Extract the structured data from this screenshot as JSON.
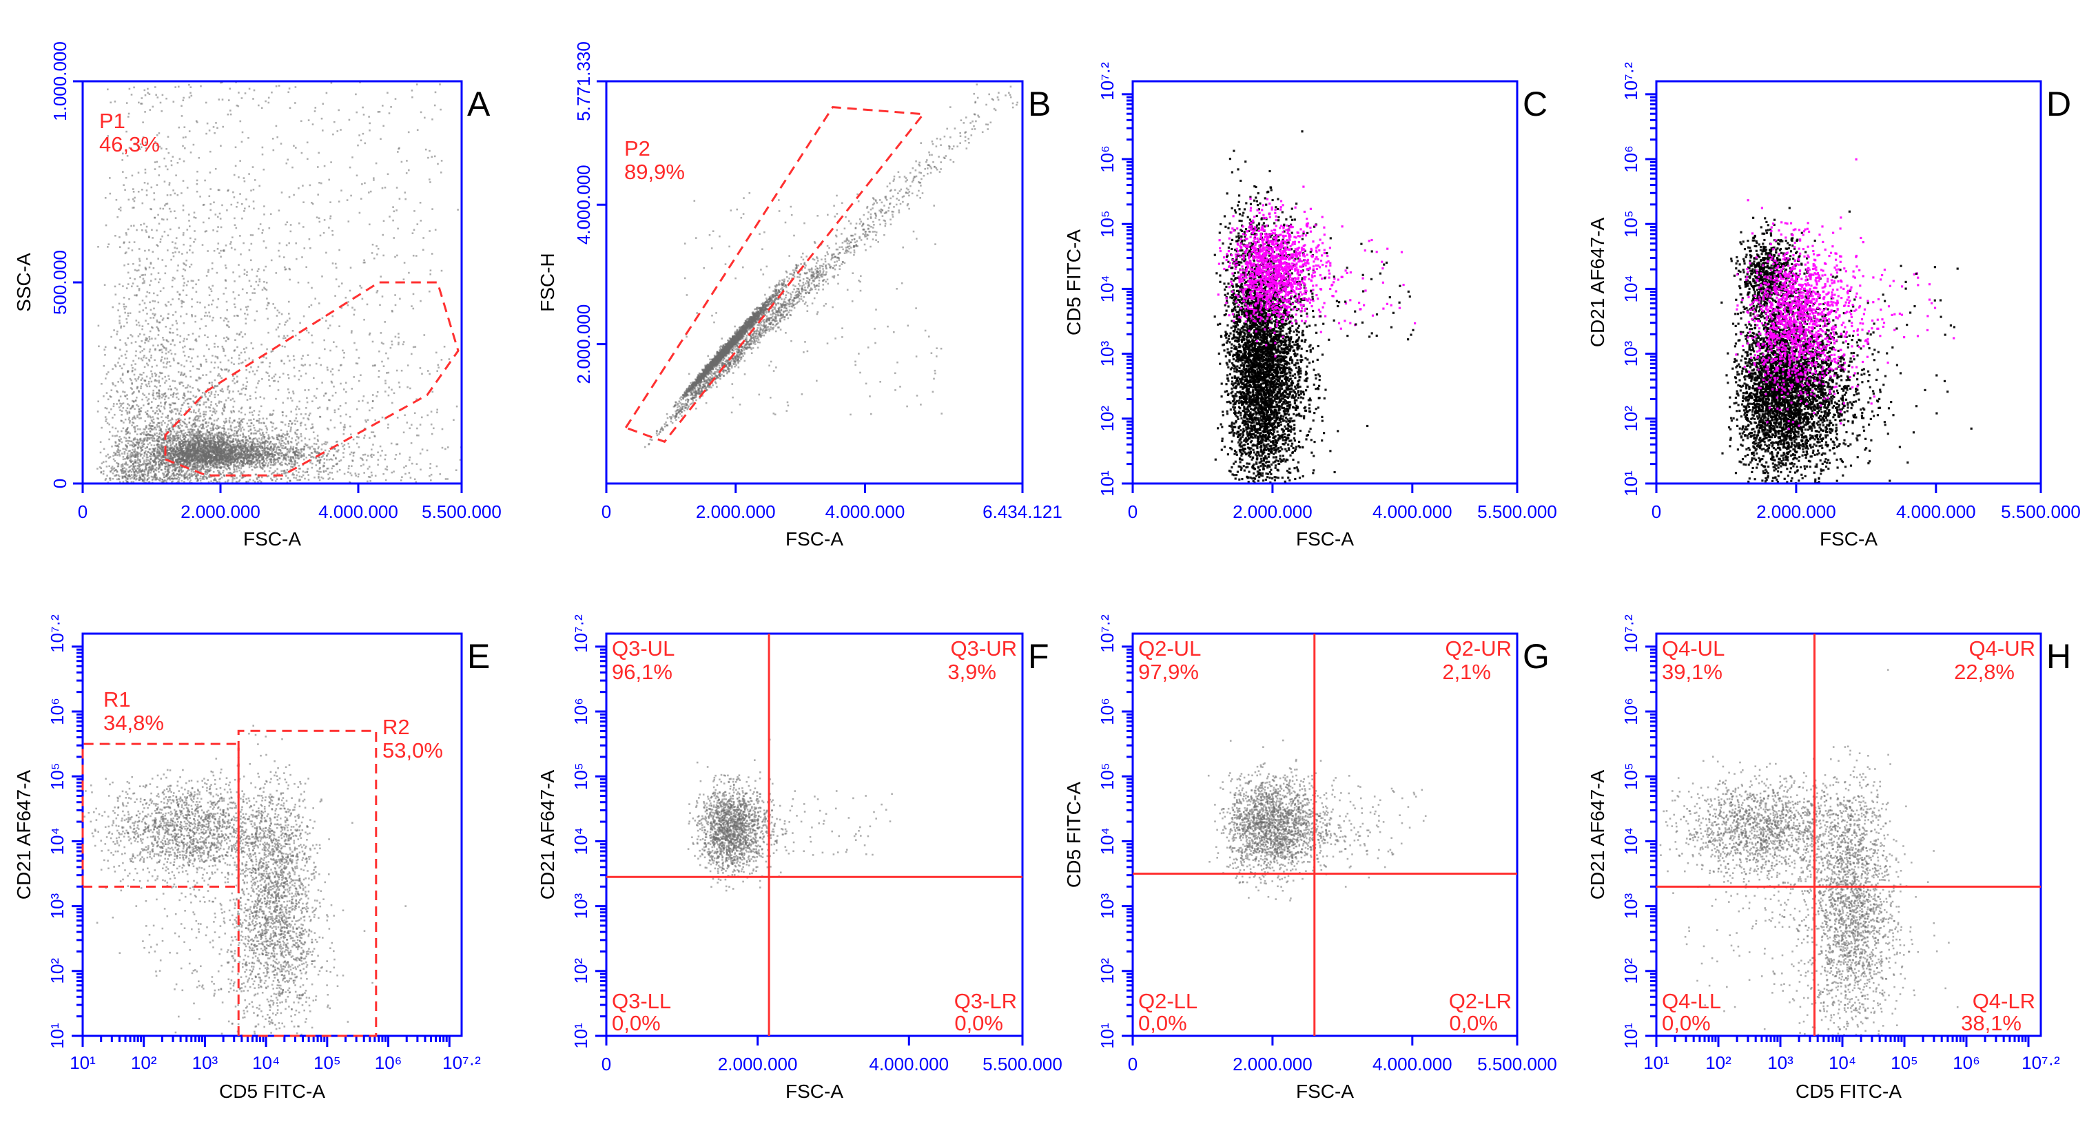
{
  "figure": {
    "colors": {
      "axis": "#0000ff",
      "gate": "#ff3030",
      "dots_gray": "#6b6b6b",
      "dots_black": "#000000",
      "dots_magenta": "#ff00ff"
    }
  },
  "chart_data": [
    {
      "id": "A",
      "letter": "A",
      "type": "scatter",
      "xlabel": "FSC-A",
      "ylabel": "SSC-A",
      "xscale": "linear",
      "yscale": "linear",
      "xlim": [
        0,
        5500000
      ],
      "ylim": [
        0,
        1000000
      ],
      "xticks": [
        0,
        2000000,
        4000000,
        5500000
      ],
      "xtick_labels": [
        "0",
        "2.000.000",
        "4.000.000",
        "5.500.000"
      ],
      "yticks": [
        0,
        500000,
        1000000
      ],
      "ytick_labels": [
        "0",
        "500.000",
        "1.000.000"
      ],
      "gates": [
        {
          "name": "P1",
          "percent": "46,3%",
          "polygon": [
            [
              1200000,
              60000
            ],
            [
              1800000,
              20000
            ],
            [
              2900000,
              20000
            ],
            [
              5000000,
              220000
            ],
            [
              5450000,
              330000
            ],
            [
              5150000,
              500000
            ],
            [
              4300000,
              500000
            ],
            [
              1800000,
              230000
            ],
            [
              1200000,
              120000
            ]
          ]
        }
      ],
      "quadrants": [],
      "populations": [
        {
          "color": "gray",
          "n": 2600,
          "spread": "log",
          "center": [
            1900000,
            80000
          ],
          "sd": [
            0.12,
            0.12
          ]
        },
        {
          "color": "gray",
          "n": 3500,
          "spread": "log",
          "center": [
            1500000,
            130000
          ],
          "sd": [
            0.28,
            0.55
          ]
        },
        {
          "color": "gray",
          "n": 700,
          "spread": "uniform",
          "range": [
            [
              500000,
              5200000
            ],
            [
              5000,
              1000000
            ]
          ]
        }
      ]
    },
    {
      "id": "B",
      "letter": "B",
      "type": "scatter",
      "xlabel": "FSC-A",
      "ylabel": "FSC-H",
      "xscale": "linear",
      "yscale": "linear",
      "xlim": [
        0,
        6434121
      ],
      "ylim": [
        0,
        5771330
      ],
      "xticks": [
        0,
        2000000,
        4000000,
        6434121
      ],
      "xtick_labels": [
        "0",
        "2.000.000",
        "4.000.000",
        "6.434.121"
      ],
      "yticks": [
        2000000,
        4000000,
        5771330
      ],
      "ytick_labels": [
        "2.000.000",
        "4.000.000",
        "5.771.330"
      ],
      "gates": [
        {
          "name": "P2",
          "percent": "89,9%",
          "polygon": [
            [
              300000,
              800000
            ],
            [
              3500000,
              5400000
            ],
            [
              4900000,
              5300000
            ],
            [
              900000,
              600000
            ]
          ]
        }
      ],
      "quadrants": [],
      "populations": [
        {
          "color": "gray",
          "n": 2500,
          "spread": "diag",
          "center": [
            1850000,
            1950000
          ],
          "sd": [
            0.08,
            0.11
          ]
        },
        {
          "color": "gray",
          "n": 1400,
          "spread": "diag",
          "center": [
            2700000,
            2500000
          ],
          "sd": [
            0.22,
            0.2
          ]
        },
        {
          "color": "gray",
          "n": 180,
          "spread": "uniform",
          "range": [
            [
              1200000,
              5200000
            ],
            [
              1000000,
              4200000
            ]
          ]
        }
      ]
    },
    {
      "id": "C",
      "letter": "C",
      "type": "scatter",
      "xlabel": "FSC-A",
      "ylabel": "CD5 FITC-A",
      "xscale": "linear",
      "yscale": "log",
      "xlim": [
        0,
        5500000
      ],
      "ylim": [
        1,
        7.2
      ],
      "xticks": [
        0,
        2000000,
        4000000,
        5500000
      ],
      "xtick_labels": [
        "0",
        "2.000.000",
        "4.000.000",
        "5.500.000"
      ],
      "ytick_labels": [
        "10¹",
        "10²",
        "10³",
        "10⁴",
        "10⁵",
        "10⁶",
        "10⁷·²"
      ],
      "gates": [],
      "quadrants": [],
      "populations": [
        {
          "color": "black",
          "n": 3600,
          "spread": "log",
          "center": [
            1850000,
            2.7
          ],
          "sd": [
            0.06,
            0.38
          ]
        },
        {
          "color": "black",
          "n": 700,
          "spread": "log",
          "center": [
            1750000,
            4.05
          ],
          "sd": [
            0.07,
            0.3
          ]
        },
        {
          "color": "magenta",
          "n": 1300,
          "spread": "log",
          "center": [
            2000000,
            4.3
          ],
          "sd": [
            0.07,
            0.17
          ]
        },
        {
          "color": "magenta",
          "n": 30,
          "spread": "uniform",
          "range": [
            [
              2500000,
              4200000
            ],
            [
              3.4,
              4.8
            ]
          ]
        },
        {
          "color": "black",
          "n": 40,
          "spread": "uniform",
          "range": [
            [
              2500000,
              4000000
            ],
            [
              3.2,
              4.8
            ]
          ]
        }
      ]
    },
    {
      "id": "D",
      "letter": "D",
      "type": "scatter",
      "xlabel": "FSC-A",
      "ylabel": "CD21 AF647-A",
      "xscale": "linear",
      "yscale": "log",
      "xlim": [
        0,
        5500000
      ],
      "ylim": [
        1,
        7.2
      ],
      "xticks": [
        0,
        2000000,
        4000000,
        5500000
      ],
      "xtick_labels": [
        "0",
        "2.000.000",
        "4.000.000",
        "5.500.000"
      ],
      "ytick_labels": [
        "10¹",
        "10²",
        "10³",
        "10⁴",
        "10⁵",
        "10⁶",
        "10⁷·²"
      ],
      "gates": [],
      "quadrants": [],
      "populations": [
        {
          "color": "black",
          "n": 3800,
          "spread": "log",
          "center": [
            1850000,
            2.45
          ],
          "sd": [
            0.09,
            0.28
          ]
        },
        {
          "color": "black",
          "n": 700,
          "spread": "log",
          "center": [
            1600000,
            4.2
          ],
          "sd": [
            0.06,
            0.14
          ]
        },
        {
          "color": "magenta",
          "n": 1400,
          "spread": "log",
          "center": [
            2000000,
            3.55
          ],
          "sd": [
            0.08,
            0.25
          ]
        },
        {
          "color": "magenta",
          "n": 30,
          "spread": "uniform",
          "range": [
            [
              2600000,
              4300000
            ],
            [
              3.2,
              4.8
            ]
          ]
        },
        {
          "color": "black",
          "n": 40,
          "spread": "uniform",
          "range": [
            [
              2500000,
              4300000
            ],
            [
              2.0,
              4.5
            ]
          ]
        }
      ]
    },
    {
      "id": "E",
      "letter": "E",
      "type": "scatter",
      "xlabel": "CD5 FITC-A",
      "ylabel": "CD21 AF647-A",
      "xscale": "log",
      "yscale": "log",
      "xlim": [
        1,
        7.2
      ],
      "ylim": [
        1,
        7.2
      ],
      "xtick_labels": [
        "10¹",
        "10²",
        "10³",
        "10⁴",
        "10⁵",
        "10⁶",
        "10⁷·²"
      ],
      "ytick_labels": [
        "10¹",
        "10²",
        "10³",
        "10⁴",
        "10⁵",
        "10⁶",
        "10⁷·²"
      ],
      "gates": [
        {
          "name": "R1",
          "percent": "34,8%",
          "polygon": [
            [
              1.0,
              3.3
            ],
            [
              3.55,
              3.3
            ],
            [
              3.55,
              5.5
            ],
            [
              1.0,
              5.5
            ]
          ]
        },
        {
          "name": "R2",
          "percent": "53,0%",
          "polygon": [
            [
              3.55,
              1.0
            ],
            [
              3.55,
              5.7
            ],
            [
              5.8,
              5.7
            ],
            [
              5.8,
              1.0
            ]
          ]
        }
      ],
      "quadrants": [],
      "populations": [
        {
          "color": "gray",
          "n": 1500,
          "spread": "log",
          "center": [
            2.7,
            4.2
          ],
          "sd": [
            0.28,
            0.16
          ]
        },
        {
          "color": "gray",
          "n": 1100,
          "spread": "log",
          "center": [
            4.15,
            2.5
          ],
          "sd": [
            0.16,
            0.32
          ]
        },
        {
          "color": "gray",
          "n": 800,
          "spread": "log",
          "center": [
            4.15,
            3.7
          ],
          "sd": [
            0.13,
            0.3
          ]
        },
        {
          "color": "gray",
          "n": 300,
          "spread": "log",
          "center": [
            3.4,
            2.7
          ],
          "sd": [
            0.35,
            0.4
          ]
        }
      ]
    },
    {
      "id": "F",
      "letter": "F",
      "type": "scatter",
      "xlabel": "FSC-A",
      "ylabel": "CD21 AF647-A",
      "xscale": "linear",
      "yscale": "log",
      "xlim": [
        0,
        5500000
      ],
      "ylim": [
        1,
        7.2
      ],
      "xticks": [
        0,
        2000000,
        4000000,
        5500000
      ],
      "xtick_labels": [
        "0",
        "2.000.000",
        "4.000.000",
        "5.500.000"
      ],
      "ytick_labels": [
        "10¹",
        "10²",
        "10³",
        "10⁴",
        "10⁵",
        "10⁶",
        "10⁷·²"
      ],
      "gates": [],
      "quadrants": [
        {
          "x": 2150000,
          "y": 3.45,
          "labels": {
            "UL": [
              "Q3-UL",
              "96,1%"
            ],
            "UR": [
              "Q3-UR",
              "3,9%"
            ],
            "LL": [
              "Q3-LL",
              "0,0%"
            ],
            "LR": [
              "Q3-LR",
              "0,0%"
            ]
          }
        }
      ],
      "populations": [
        {
          "color": "gray",
          "n": 1600,
          "spread": "log",
          "center": [
            1650000,
            4.2
          ],
          "sd": [
            0.06,
            0.14
          ]
        },
        {
          "color": "gray",
          "n": 60,
          "spread": "uniform",
          "range": [
            [
              2100000,
              3800000
            ],
            [
              3.8,
              4.8
            ]
          ]
        }
      ]
    },
    {
      "id": "G",
      "letter": "G",
      "type": "scatter",
      "xlabel": "FSC-A",
      "ylabel": "CD5 FITC-A",
      "xscale": "linear",
      "yscale": "log",
      "xlim": [
        0,
        5500000
      ],
      "ylim": [
        1,
        7.2
      ],
      "xticks": [
        0,
        2000000,
        4000000,
        5500000
      ],
      "xtick_labels": [
        "0",
        "2.000.000",
        "4.000.000",
        "5.500.000"
      ],
      "ytick_labels": [
        "10¹",
        "10²",
        "10³",
        "10⁴",
        "10⁵",
        "10⁶",
        "10⁷·²"
      ],
      "gates": [],
      "quadrants": [
        {
          "x": 2600000,
          "y": 3.5,
          "labels": {
            "UL": [
              "Q2-UL",
              "97,9%"
            ],
            "UR": [
              "Q2-UR",
              "2,1%"
            ],
            "LL": [
              "Q2-LL",
              "0,0%"
            ],
            "LR": [
              "Q2-LR",
              "0,0%"
            ]
          }
        }
      ],
      "populations": [
        {
          "color": "gray",
          "n": 2000,
          "spread": "log",
          "center": [
            2000000,
            4.25
          ],
          "sd": [
            0.08,
            0.16
          ]
        },
        {
          "color": "gray",
          "n": 60,
          "spread": "uniform",
          "range": [
            [
              2500000,
              4200000
            ],
            [
              3.8,
              4.9
            ]
          ]
        }
      ]
    },
    {
      "id": "H",
      "letter": "H",
      "type": "scatter",
      "xlabel": "CD5 FITC-A",
      "ylabel": "CD21 AF647-A",
      "xscale": "log",
      "yscale": "log",
      "xlim": [
        1,
        7.2
      ],
      "ylim": [
        1,
        7.2
      ],
      "xtick_labels": [
        "10¹",
        "10²",
        "10³",
        "10⁴",
        "10⁵",
        "10⁶",
        "10⁷·²"
      ],
      "ytick_labels": [
        "10¹",
        "10²",
        "10³",
        "10⁴",
        "10⁵",
        "10⁶",
        "10⁷·²"
      ],
      "gates": [],
      "quadrants": [
        {
          "x": 3.55,
          "y": 3.3,
          "labels": {
            "UL": [
              "Q4-UL",
              "39,1%"
            ],
            "UR": [
              "Q4-UR",
              "22,8%"
            ],
            "LL": [
              "Q4-LL",
              "0,0%"
            ],
            "LR": [
              "Q4-LR",
              "38,1%"
            ]
          }
        }
      ],
      "populations": [
        {
          "color": "gray",
          "n": 1500,
          "spread": "log",
          "center": [
            2.7,
            4.2
          ],
          "sd": [
            0.28,
            0.16
          ]
        },
        {
          "color": "gray",
          "n": 1100,
          "spread": "log",
          "center": [
            4.15,
            2.5
          ],
          "sd": [
            0.16,
            0.32
          ]
        },
        {
          "color": "gray",
          "n": 800,
          "spread": "log",
          "center": [
            4.15,
            3.7
          ],
          "sd": [
            0.13,
            0.3
          ]
        },
        {
          "color": "gray",
          "n": 300,
          "spread": "log",
          "center": [
            3.4,
            2.7
          ],
          "sd": [
            0.35,
            0.4
          ]
        }
      ]
    }
  ]
}
